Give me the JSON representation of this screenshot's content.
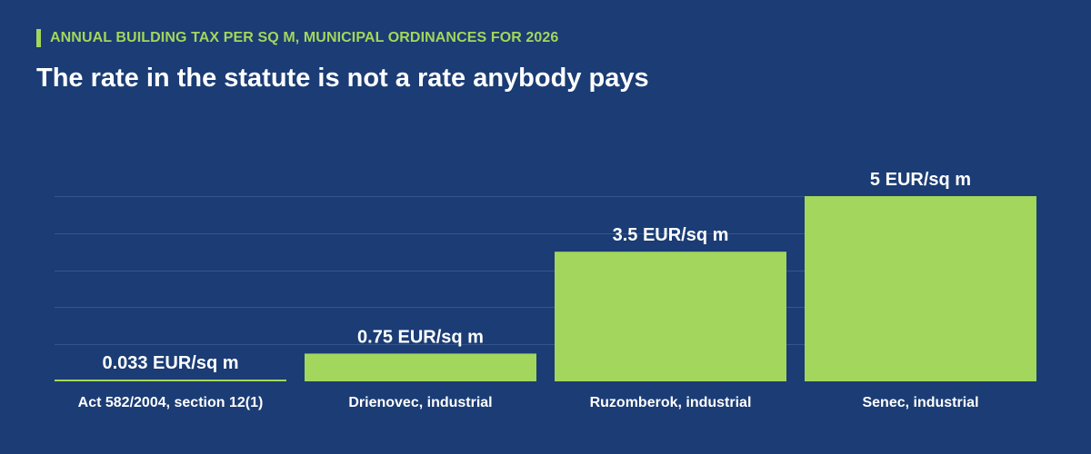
{
  "header": {
    "kicker": "ANNUAL BUILDING TAX PER SQ M, MUNICIPAL ORDINANCES FOR 2026",
    "title": "The rate in the statute is not a rate anybody pays"
  },
  "colors": {
    "background": "#1b3c74",
    "accent": "#a3d65c",
    "text": "#ffffff",
    "gridline": "#34558d"
  },
  "chart_data": {
    "type": "bar",
    "categories": [
      "Act 582/2004, section 12(1)",
      "Drienovec, industrial",
      "Ruzomberok, industrial",
      "Senec, industrial"
    ],
    "values": [
      0.033,
      0.75,
      3.5,
      5
    ],
    "data_labels": [
      "0.033 EUR/sq m",
      "0.75 EUR/sq m",
      "3.5 EUR/sq m",
      "5 EUR/sq m"
    ],
    "unit": "EUR/sq m",
    "ylim": [
      0,
      5
    ],
    "grid": true,
    "gridlines": [
      1,
      2,
      3,
      4,
      5
    ],
    "y_axis_shown": false,
    "legend": "none"
  }
}
